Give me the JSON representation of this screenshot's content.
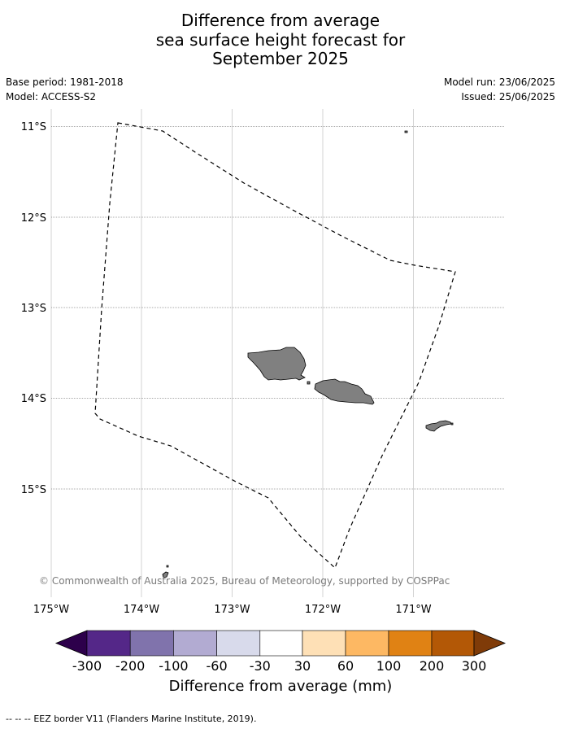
{
  "title": {
    "line1": "Difference from average",
    "line2": "sea surface height forecast for",
    "line3": "September 2025"
  },
  "meta": {
    "base_period": "Base period: 1981-2018",
    "model": "Model: ACCESS-S2",
    "model_run": "Model run: 23/06/2025",
    "issued": "Issued: 25/06/2025"
  },
  "map": {
    "lat_labels": [
      "11°S",
      "12°S",
      "13°S",
      "14°S",
      "15°S"
    ],
    "lon_labels": [
      "175°W",
      "174°W",
      "173°W",
      "172°W",
      "171°W"
    ],
    "land_color": "#808080",
    "eez_line_style": "dashed black",
    "copyright": "© Commonwealth of Australia 2025, Bureau of Meteorology, supported by COSPPac"
  },
  "colorbar": {
    "ticks": [
      "-300",
      "-200",
      "-100",
      "-60",
      "-30",
      "30",
      "60",
      "100",
      "200",
      "300"
    ],
    "colors": [
      "#2d004b",
      "#542788",
      "#8073ac",
      "#b2abd2",
      "#d8daeb",
      "#ffffff",
      "#fee0b6",
      "#fdb863",
      "#e08214",
      "#b35806",
      "#7f3b08"
    ],
    "label": "Difference from average (mm)"
  },
  "legend": {
    "symbol": "-- -- --",
    "text": "EEZ border V11 (Flanders Marine Institute, 2019)."
  }
}
